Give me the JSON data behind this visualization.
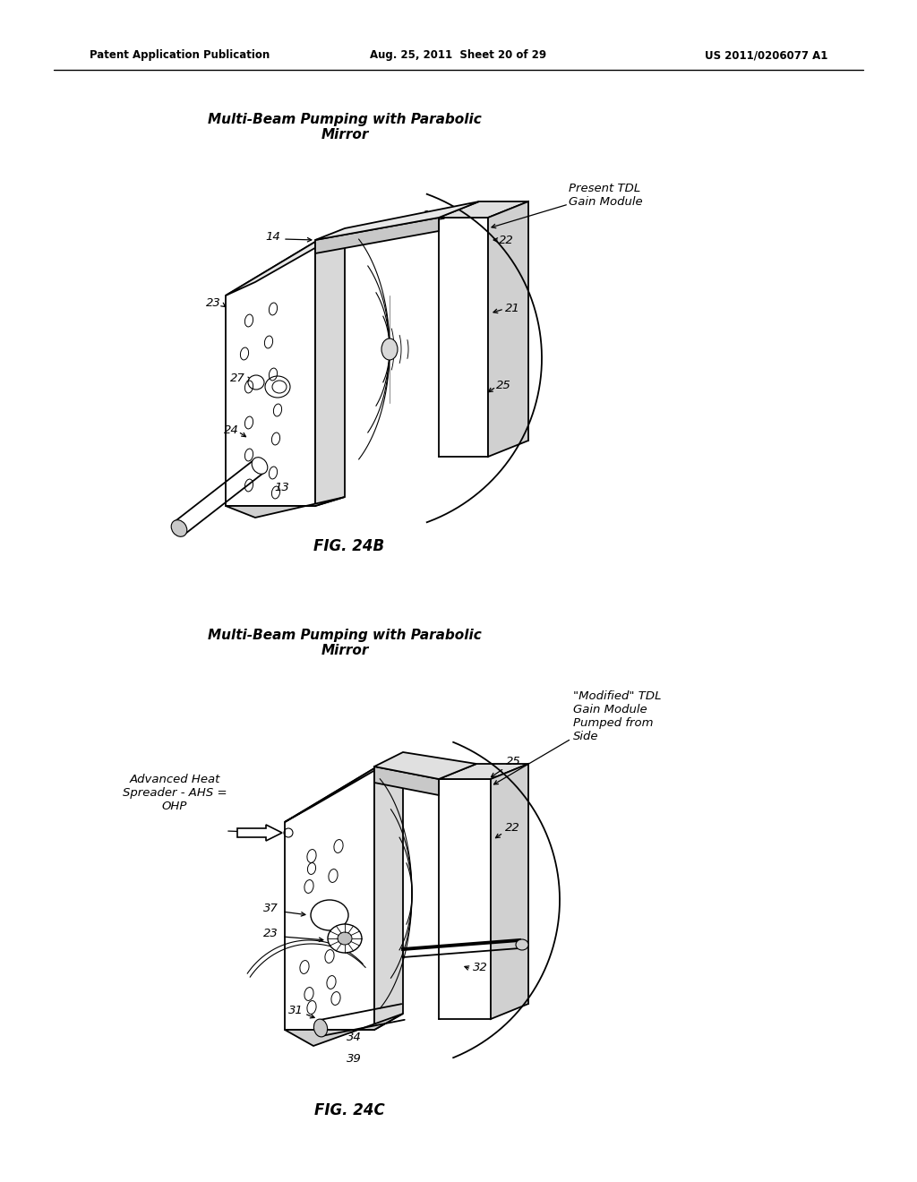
{
  "page_header_left": "Patent Application Publication",
  "page_header_mid": "Aug. 25, 2011  Sheet 20 of 29",
  "page_header_right": "US 2011/0206077 A1",
  "fig1_title": "Multi-Beam Pumping with Parabolic\nMirror",
  "fig1_caption": "FIG. 24B",
  "fig1_label_tdl": "Present TDL\nGain Module",
  "fig2_title": "Multi-Beam Pumping with Parabolic\nMirror",
  "fig2_caption": "FIG. 24C",
  "fig2_label_tdl": "\"Modified\" TDL\nGain Module\nPumped from\nSide",
  "fig2_label_ahs": "Advanced Heat\nSpreader - AHS =\nOHP",
  "bg_color": "#ffffff"
}
